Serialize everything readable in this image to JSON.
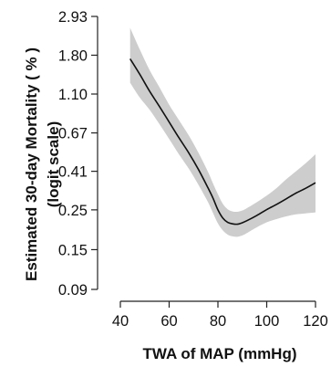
{
  "chart_data": {
    "type": "line",
    "title": "",
    "xlabel": "TWA of MAP (mmHg)",
    "ylabel": "Estimated 30-day Mortality ( % )",
    "ylabel_line2": "(logit scale)",
    "xlim": [
      40,
      120
    ],
    "ylim": [
      0.09,
      2.93
    ],
    "yscale": "logit",
    "grid": false,
    "legend": "none",
    "x_ticks": [
      40,
      60,
      80,
      100,
      120
    ],
    "x_tick_labels": [
      "40",
      "60",
      "80",
      "100",
      "120"
    ],
    "y_ticks": [
      0.09,
      0.15,
      0.25,
      0.41,
      0.67,
      1.1,
      1.8,
      2.93
    ],
    "y_tick_labels": [
      "0.09",
      "0.15",
      "0.25",
      "0.41",
      "0.67",
      "1.10",
      "1.80",
      "2.93"
    ],
    "series": [
      {
        "x": [
          44,
          48,
          52,
          56,
          60,
          64,
          68,
          72,
          76,
          78,
          80,
          82,
          84,
          86,
          88,
          90,
          92,
          96,
          100,
          104,
          108,
          112,
          116,
          120
        ],
        "y": [
          1.72,
          1.41,
          1.14,
          0.94,
          0.77,
          0.63,
          0.52,
          0.42,
          0.33,
          0.29,
          0.25,
          0.225,
          0.213,
          0.209,
          0.208,
          0.212,
          0.218,
          0.233,
          0.251,
          0.268,
          0.288,
          0.31,
          0.33,
          0.354
        ],
        "lower": [
          1.27,
          1.05,
          0.9,
          0.75,
          0.62,
          0.51,
          0.425,
          0.345,
          0.275,
          0.24,
          0.21,
          0.192,
          0.182,
          0.178,
          0.177,
          0.18,
          0.186,
          0.2,
          0.213,
          0.222,
          0.23,
          0.236,
          0.239,
          0.242
        ],
        "upper": [
          2.54,
          1.93,
          1.49,
          1.2,
          0.96,
          0.79,
          0.65,
          0.52,
          0.405,
          0.35,
          0.305,
          0.27,
          0.252,
          0.245,
          0.244,
          0.248,
          0.256,
          0.276,
          0.3,
          0.33,
          0.37,
          0.41,
          0.455,
          0.51
        ]
      }
    ],
    "colors": {
      "line": "#111111",
      "band": "#cdcdcd",
      "axis": "#222222"
    }
  }
}
